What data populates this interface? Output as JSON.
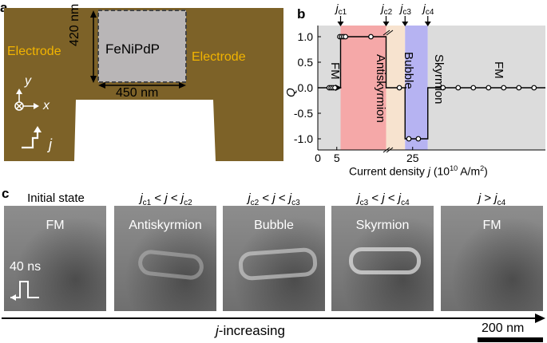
{
  "panel_a": {
    "label": "a",
    "electrode_left": "Electrode",
    "electrode_right": "Electrode",
    "material": "FeNiPdP",
    "height_dim": "420 nm",
    "width_dim": "450 nm",
    "axis_y": "y",
    "axis_x": "x",
    "current_symbol": "j",
    "colors": {
      "electrode": "#7d6228",
      "material": "#b9b6b7",
      "text": "#f2b400"
    }
  },
  "panel_b": {
    "label": "b",
    "ylabel": "Q",
    "xlabel": "Current density j (10^10 A/m²)",
    "xlabel_main": "Current density ",
    "xlabel_sym": "j",
    "xlabel_unit_pre": " (10",
    "xlabel_exp": "10",
    "xlabel_unit_post": " A/m",
    "xlabel_sq": "2",
    "xlabel_close": ")",
    "thresholds": [
      "jc1",
      "jc2",
      "jc3",
      "jc4"
    ],
    "threshold_labels": [
      {
        "main": "j",
        "sub": "c1"
      },
      {
        "main": "j",
        "sub": "c2"
      },
      {
        "main": "j",
        "sub": "c3"
      },
      {
        "main": "j",
        "sub": "c4"
      }
    ],
    "regions": [
      "FM",
      "Antiskyrmion",
      "Bubble",
      "Skyrmion",
      "FM"
    ],
    "region_colors": [
      "#dcdcdc",
      "#f5a8a8",
      "#f7e3cf",
      "#b6b3f2",
      "#dcdcdc"
    ]
  },
  "chart_data": {
    "type": "scatter",
    "title": "",
    "xlabel": "Current density j (10^10 A/m²)",
    "ylabel": "Q",
    "xlim": [
      0,
      60
    ],
    "ylim": [
      -1.2,
      1.2
    ],
    "axis_break": true,
    "x_ticks": [
      "0",
      "5",
      "25"
    ],
    "y_ticks": [
      "1.0",
      "0.5",
      "0.0",
      "-0.5",
      "-1.0"
    ],
    "series": [
      {
        "points": [
          {
            "x": 3.0,
            "y": 0
          },
          {
            "x": 3.5,
            "y": 0
          },
          {
            "x": 4.0,
            "y": 0
          },
          {
            "x": 4.5,
            "y": 0
          },
          {
            "x": 5.8,
            "y": 1
          },
          {
            "x": 6.3,
            "y": 1
          },
          {
            "x": 6.8,
            "y": 1
          },
          {
            "x": 7.3,
            "y": 1
          },
          {
            "x": 14.0,
            "y": 1
          },
          {
            "x": 21.5,
            "y": 0
          },
          {
            "x": 24.0,
            "y": -1
          },
          {
            "x": 26.5,
            "y": -1
          },
          {
            "x": 33.0,
            "y": 0
          },
          {
            "x": 37.0,
            "y": 0
          },
          {
            "x": 41.0,
            "y": 0
          },
          {
            "x": 45.0,
            "y": 0
          },
          {
            "x": 49.0,
            "y": 0
          },
          {
            "x": 53.0,
            "y": 0
          },
          {
            "x": 57.0,
            "y": 0
          }
        ]
      }
    ],
    "step_line": [
      [
        0,
        0
      ],
      [
        6.0,
        0
      ],
      [
        6.0,
        1
      ],
      [
        18.0,
        1
      ],
      [
        18.0,
        0
      ],
      [
        23.0,
        0
      ],
      [
        23.0,
        -1
      ],
      [
        29.0,
        -1
      ],
      [
        29.0,
        0
      ],
      [
        60.0,
        0
      ]
    ],
    "threshold_x": [
      6.0,
      18.0,
      23.0,
      29.0
    ]
  },
  "panel_c": {
    "label": "c",
    "conditions": [
      {
        "text": "Initial state"
      },
      {
        "j": "j",
        "s1": "c1",
        "mid": " < ",
        "j2": "j",
        "mid2": " < ",
        "j3": "j",
        "s3": "c2"
      },
      {
        "j": "j",
        "s1": "c2",
        "mid": " < ",
        "j2": "j",
        "mid2": " < ",
        "j3": "j",
        "s3": "c3"
      },
      {
        "j": "j",
        "s1": "c3",
        "mid": " < ",
        "j2": "j",
        "mid2": " < ",
        "j3": "j",
        "s3": "c4"
      },
      {
        "j": "j",
        "s1": "",
        "mid": " > ",
        "j2": "j",
        "mid2": "",
        "j3": "",
        "s3": "c4"
      }
    ],
    "frames": [
      "FM",
      "Antiskyrmion",
      "Bubble",
      "Skyrmion",
      "FM"
    ],
    "pulse_label": "40 ns",
    "axis_label_j": "j",
    "axis_label_rest": "-increasing",
    "scale_bar": "200 nm"
  }
}
